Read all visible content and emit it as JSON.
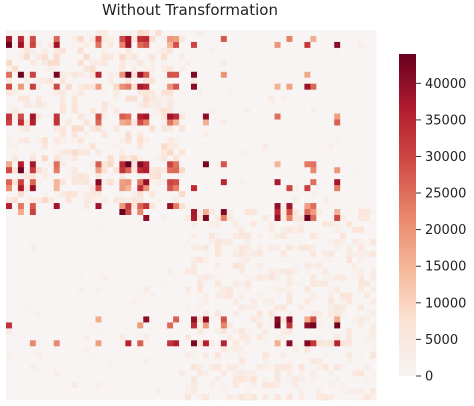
{
  "chart_data": {
    "type": "heatmap",
    "title": "Without Transformation",
    "rows": 62,
    "cols": 62,
    "group_split": 30,
    "vmin": 0,
    "vmax": 44000,
    "colorbar_ticks": [
      0,
      5000,
      10000,
      15000,
      20000,
      25000,
      30000,
      35000,
      40000
    ],
    "colorbar_tick_labels": [
      "0",
      "5000",
      "10000",
      "15000",
      "20000",
      "25000",
      "30000",
      "35000",
      "40000"
    ],
    "colormap": [
      "#f7f4f3",
      "#fbe3d6",
      "#f6b89a",
      "#e8856a",
      "#cf4a44",
      "#b11b2e",
      "#67001f"
    ],
    "block_means": {
      "top_left": 6000,
      "bottom_right": 5000,
      "off_diagonal": 400
    },
    "hotspot_rows": [
      1,
      2,
      7,
      9,
      14,
      15,
      22,
      23,
      25,
      26,
      29,
      30,
      31,
      48,
      49,
      52
    ],
    "hotspot_cols": [
      0,
      2,
      4,
      8,
      15,
      19,
      20,
      22,
      23,
      27,
      28,
      31,
      33,
      36,
      45,
      47,
      50,
      51,
      55
    ],
    "hotspot_value_range": [
      15000,
      44000
    ],
    "grid": false,
    "colorbar_position": "right"
  }
}
